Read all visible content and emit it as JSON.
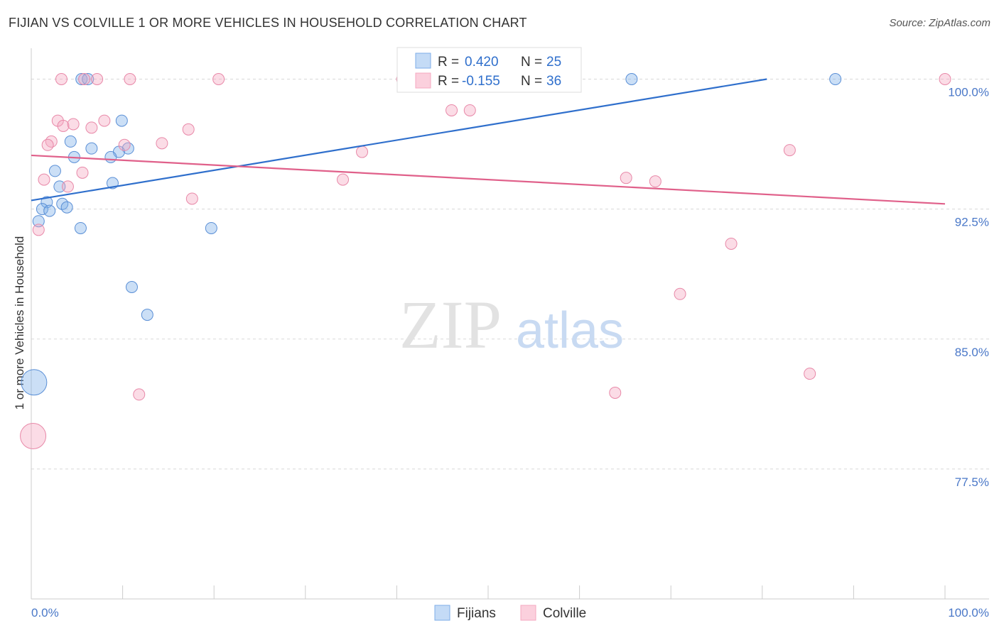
{
  "header": {
    "title": "FIJIAN VS COLVILLE 1 OR MORE VEHICLES IN HOUSEHOLD CORRELATION CHART",
    "source": "Source: ZipAtlas.com"
  },
  "watermark": {
    "part1": "ZIP",
    "part2": "atlas"
  },
  "legend": {
    "r_label": "R =",
    "n_label": "N =",
    "series": [
      {
        "name": "Fijians",
        "r": "0.420",
        "n": "25"
      },
      {
        "name": "Colville",
        "r": "-0.155",
        "n": "36"
      }
    ]
  },
  "chart_data": {
    "type": "scatter",
    "title": "FIJIAN VS COLVILLE 1 OR MORE VEHICLES IN HOUSEHOLD CORRELATION CHART",
    "xlabel": "",
    "ylabel": "1 or more Vehicles in Household",
    "xlim": [
      0,
      100
    ],
    "ylim": [
      70.0,
      101.7
    ],
    "x_tick_labels": [
      "0.0%",
      "100.0%"
    ],
    "y_ticks": [
      {
        "value": 100.0,
        "label": "100.0%"
      },
      {
        "value": 92.5,
        "label": "92.5%"
      },
      {
        "value": 85.0,
        "label": "85.0%"
      },
      {
        "value": 77.5,
        "label": "77.5%"
      }
    ],
    "grid": true,
    "series": [
      {
        "name": "Fijians",
        "color": "#7eaee8",
        "stroke": "#5a8fd6",
        "line_color": "#2f6fcc",
        "trend": {
          "x": [
            0,
            80.5
          ],
          "y": [
            93.0,
            100.0
          ]
        },
        "points": [
          {
            "x": 5.5,
            "y": 100.0
          },
          {
            "x": 6.2,
            "y": 100.0
          },
          {
            "x": 65.7,
            "y": 100.0
          },
          {
            "x": 88.0,
            "y": 100.0
          },
          {
            "x": 9.9,
            "y": 97.6
          },
          {
            "x": 4.3,
            "y": 96.4
          },
          {
            "x": 6.6,
            "y": 96.0
          },
          {
            "x": 10.6,
            "y": 96.0
          },
          {
            "x": 9.6,
            "y": 95.8
          },
          {
            "x": 4.7,
            "y": 95.5
          },
          {
            "x": 8.7,
            "y": 95.5
          },
          {
            "x": 2.6,
            "y": 94.7
          },
          {
            "x": 8.9,
            "y": 94.0
          },
          {
            "x": 3.1,
            "y": 93.8
          },
          {
            "x": 1.7,
            "y": 92.9
          },
          {
            "x": 3.4,
            "y": 92.8
          },
          {
            "x": 1.2,
            "y": 92.5
          },
          {
            "x": 2.0,
            "y": 92.4
          },
          {
            "x": 3.9,
            "y": 92.6
          },
          {
            "x": 0.8,
            "y": 91.8
          },
          {
            "x": 5.4,
            "y": 91.4
          },
          {
            "x": 19.7,
            "y": 91.4
          },
          {
            "x": 11.0,
            "y": 88.0
          },
          {
            "x": 12.7,
            "y": 86.4
          },
          {
            "x": 0.3,
            "y": 82.5,
            "size": "large"
          }
        ]
      },
      {
        "name": "Colville",
        "color": "#f4a8c0",
        "stroke": "#e888a8",
        "line_color": "#e0608a",
        "trend": {
          "x": [
            0,
            100
          ],
          "y": [
            95.6,
            92.8
          ]
        },
        "points": [
          {
            "x": 5.8,
            "y": 100.0
          },
          {
            "x": 7.2,
            "y": 100.0
          },
          {
            "x": 10.8,
            "y": 100.0
          },
          {
            "x": 40.6,
            "y": 100.0
          },
          {
            "x": 53.2,
            "y": 100.0
          },
          {
            "x": 100.0,
            "y": 100.0
          },
          {
            "x": 46.0,
            "y": 98.2
          },
          {
            "x": 48.0,
            "y": 98.2
          },
          {
            "x": 2.9,
            "y": 97.6
          },
          {
            "x": 8.0,
            "y": 97.6
          },
          {
            "x": 3.5,
            "y": 97.3
          },
          {
            "x": 4.6,
            "y": 97.4
          },
          {
            "x": 6.6,
            "y": 97.2
          },
          {
            "x": 17.2,
            "y": 97.1
          },
          {
            "x": 2.2,
            "y": 96.4
          },
          {
            "x": 1.8,
            "y": 96.2
          },
          {
            "x": 10.2,
            "y": 96.2
          },
          {
            "x": 14.3,
            "y": 96.3
          },
          {
            "x": 36.2,
            "y": 95.8
          },
          {
            "x": 83.0,
            "y": 95.9
          },
          {
            "x": 5.6,
            "y": 94.6
          },
          {
            "x": 1.4,
            "y": 94.2
          },
          {
            "x": 34.1,
            "y": 94.2
          },
          {
            "x": 65.1,
            "y": 94.3
          },
          {
            "x": 68.3,
            "y": 94.1
          },
          {
            "x": 4.0,
            "y": 93.8
          },
          {
            "x": 17.6,
            "y": 93.1
          },
          {
            "x": 0.8,
            "y": 91.3
          },
          {
            "x": 76.6,
            "y": 90.5
          },
          {
            "x": 71.0,
            "y": 87.6
          },
          {
            "x": 85.2,
            "y": 83.0
          },
          {
            "x": 63.9,
            "y": 81.9
          },
          {
            "x": 11.8,
            "y": 81.8
          },
          {
            "x": 0.2,
            "y": 79.4,
            "size": "large"
          },
          {
            "x": 20.5,
            "y": 100.0
          },
          {
            "x": 3.3,
            "y": 100.0
          }
        ]
      }
    ]
  }
}
